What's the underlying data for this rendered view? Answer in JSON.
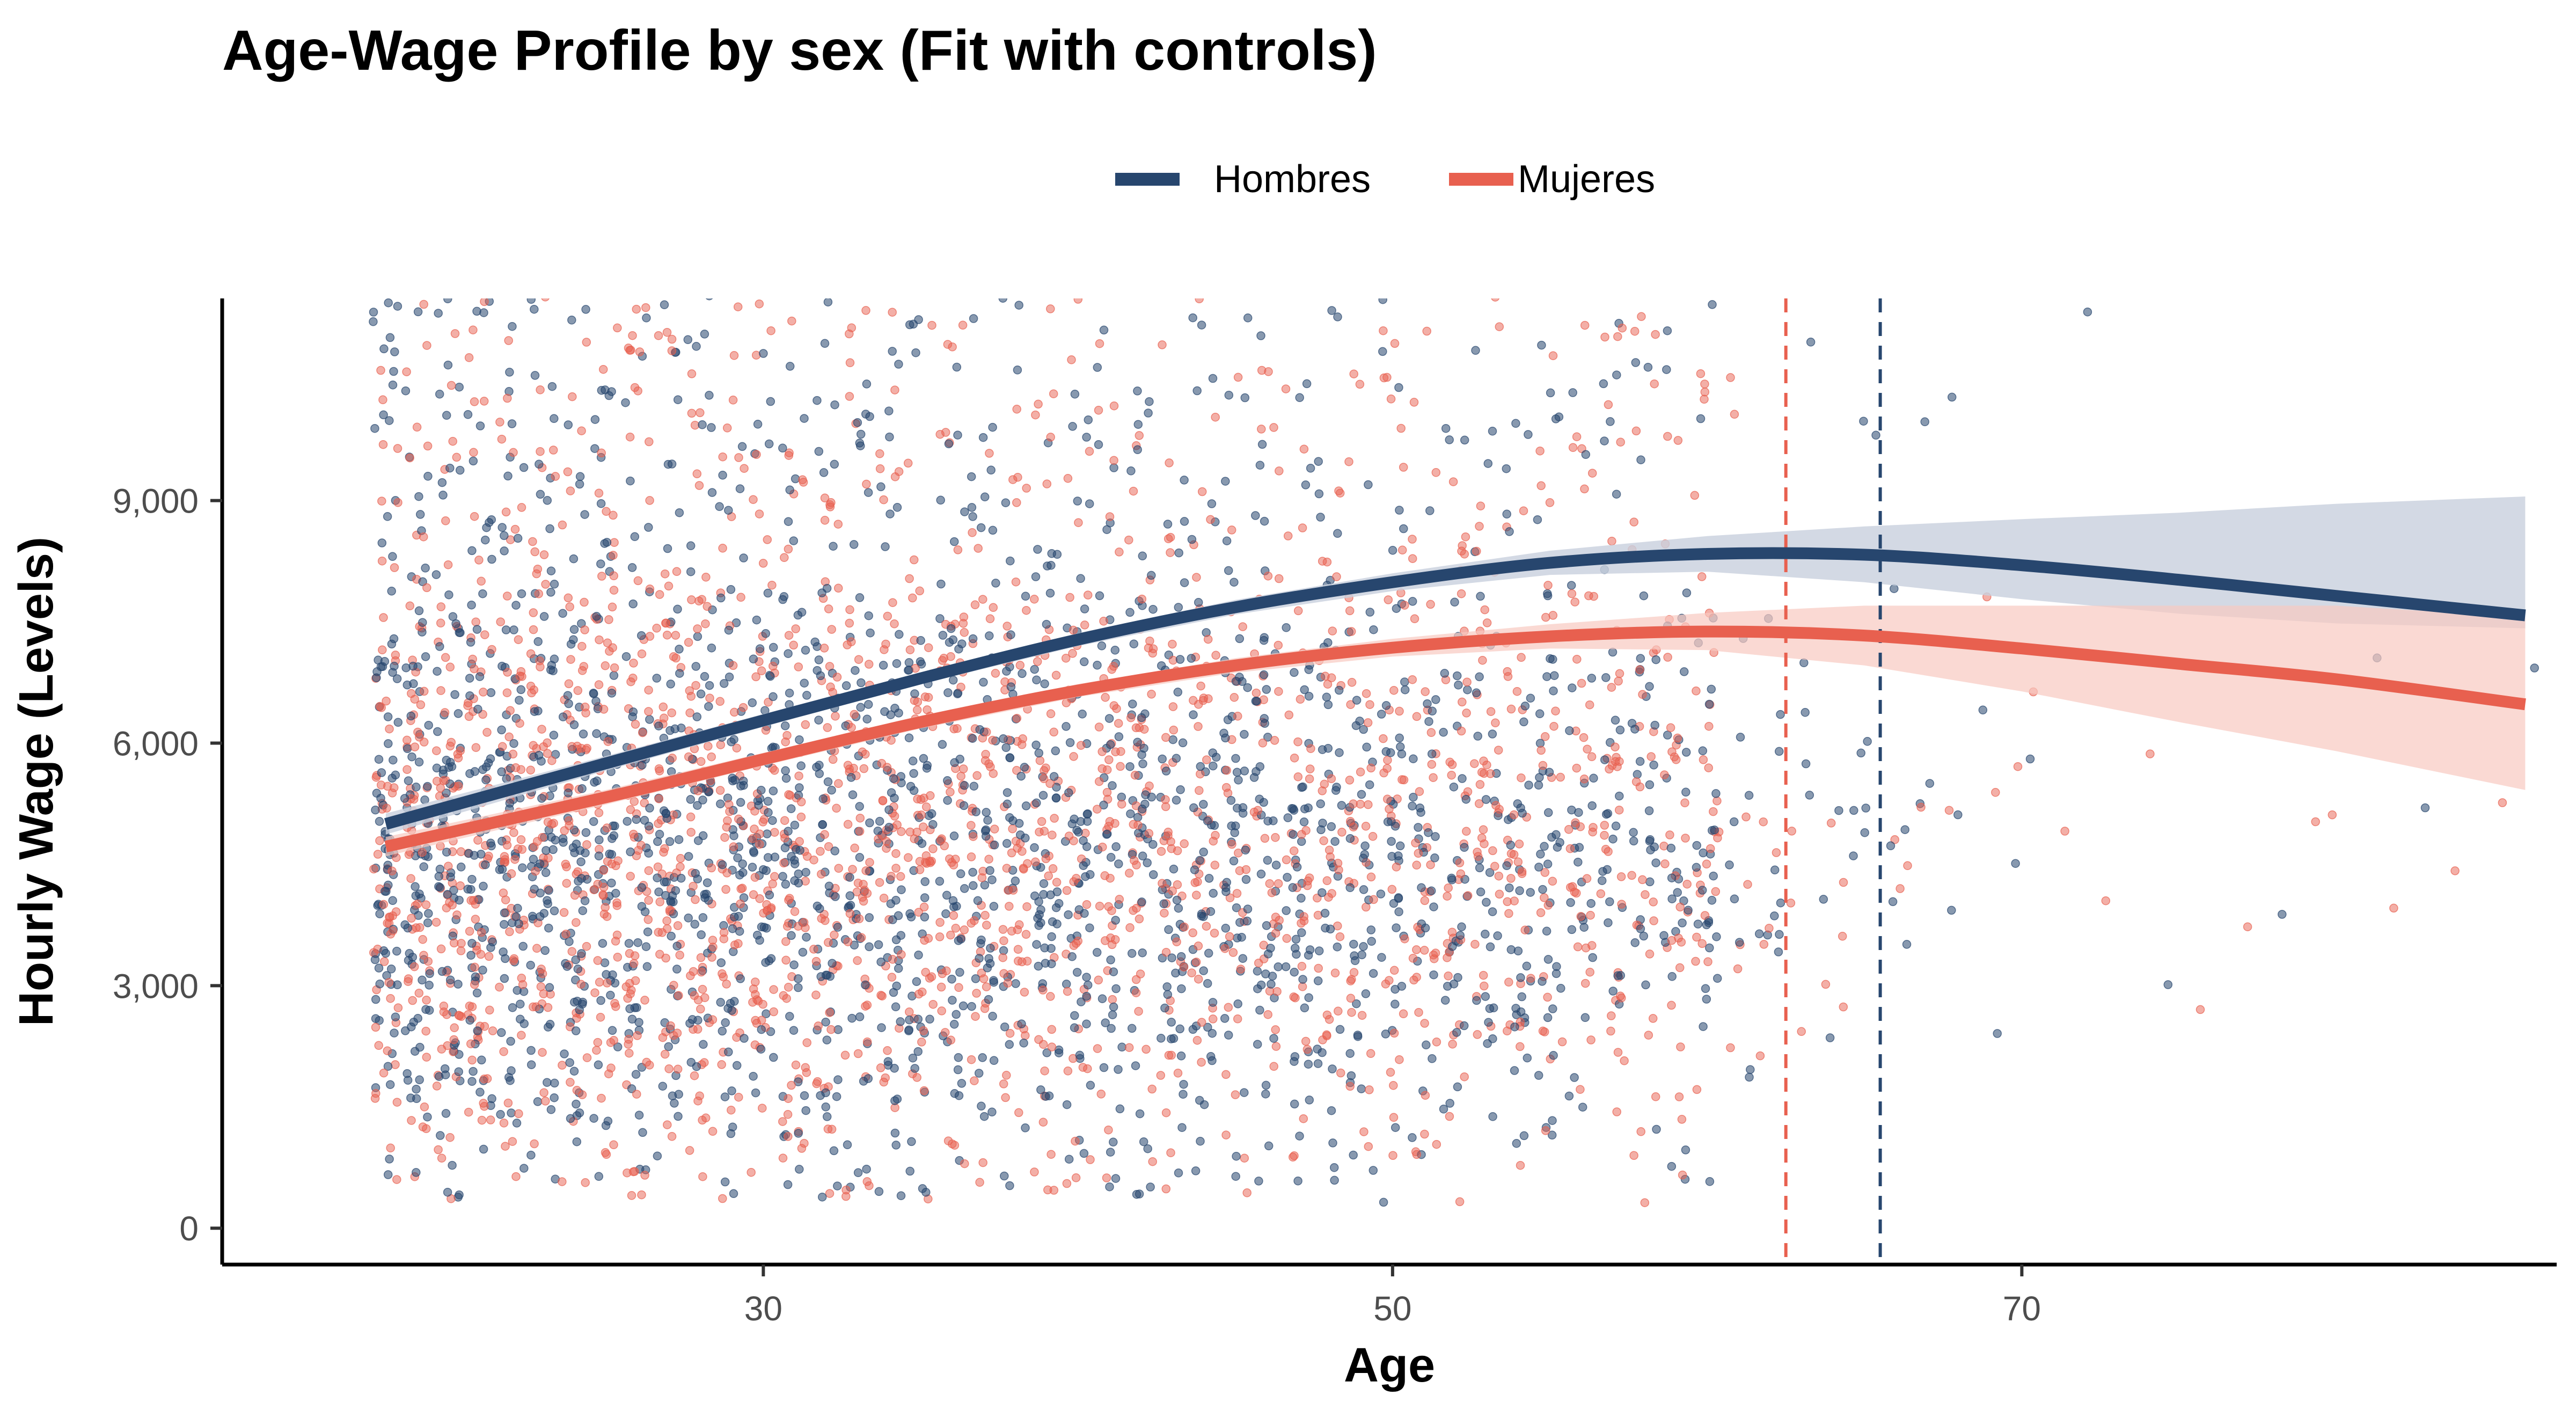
{
  "chart_data": {
    "type": "scatter",
    "title": "Age-Wage Profile by sex (Fit with controls)",
    "xlabel": "Age",
    "ylabel": "Hourly Wage (Levels)",
    "xlim": [
      12.8,
      87
    ],
    "ylim": [
      -450,
      11500
    ],
    "xticks": [
      30,
      50,
      70
    ],
    "yticks": [
      0,
      3000,
      6000,
      9000
    ],
    "ytick_labels": [
      "0",
      "3,000",
      "6,000",
      "9,000"
    ],
    "grid": false,
    "legend_position": "top",
    "series": [
      {
        "name": "Hombres",
        "color": "#27466e",
        "fit": {
          "age": [
            18,
            25,
            30,
            35,
            40,
            45,
            50,
            55,
            60,
            65,
            70,
            75,
            80,
            86
          ],
          "wage": [
            5000,
            5750,
            6280,
            6800,
            7280,
            7680,
            7990,
            8230,
            8340,
            8330,
            8200,
            8020,
            7820,
            7580
          ],
          "ci_lower": [
            4870,
            5660,
            6200,
            6730,
            7200,
            7590,
            7880,
            8080,
            8120,
            7990,
            7780,
            7600,
            7480,
            7420
          ],
          "ci_upper": [
            5130,
            5840,
            6360,
            6870,
            7360,
            7770,
            8100,
            8380,
            8560,
            8680,
            8770,
            8850,
            8960,
            9050
          ]
        },
        "peak_age": 65.5
      },
      {
        "name": "Mujeres",
        "color": "#e8604f",
        "fit": {
          "age": [
            18,
            25,
            30,
            35,
            40,
            45,
            50,
            55,
            60,
            65,
            70,
            75,
            80,
            86
          ],
          "wage": [
            4720,
            5330,
            5800,
            6260,
            6650,
            6960,
            7180,
            7320,
            7380,
            7330,
            7170,
            6980,
            6790,
            6480
          ],
          "ci_lower": [
            4600,
            5240,
            5720,
            6180,
            6570,
            6870,
            7070,
            7170,
            7150,
            6960,
            6640,
            6260,
            5900,
            5420
          ],
          "ci_upper": [
            4840,
            5420,
            5880,
            6340,
            6730,
            7050,
            7290,
            7470,
            7610,
            7700,
            7700,
            7700,
            7700,
            7560
          ]
        },
        "peak_age": 62.5
      }
    ]
  }
}
